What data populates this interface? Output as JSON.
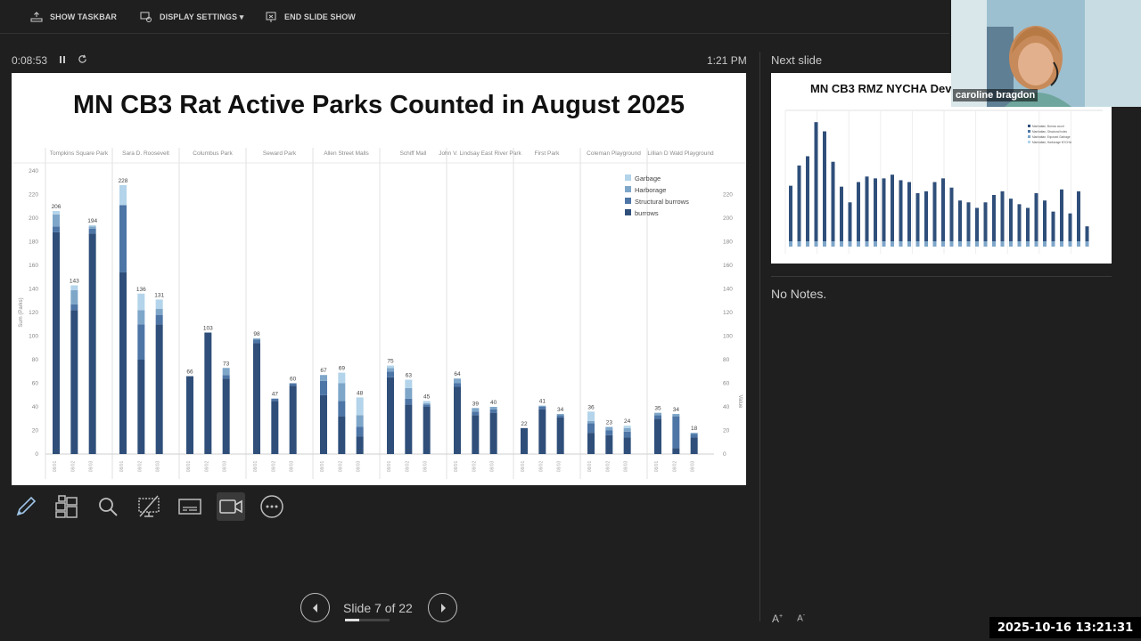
{
  "toolbar": {
    "show_taskbar": "SHOW TASKBAR",
    "display_settings": "DISPLAY SETTINGS ▾",
    "end_slide_show": "END SLIDE SHOW"
  },
  "timer": {
    "elapsed": "0:08:53"
  },
  "clock": "1:21 PM",
  "slide": {
    "title": "MN CB3 Rat Active Parks Counted in August 2025"
  },
  "slide_nav": {
    "label": "Slide 7 of 22",
    "current": 7,
    "total": 22
  },
  "next_slide": {
    "label": "Next slide",
    "title": "MN CB3 RMZ NYCHA Dev"
  },
  "notes": "No Notes.",
  "webcam": {
    "participant": "caroline bragdon"
  },
  "datestamp": "2025-10-16  13:21:31",
  "icons": [
    "taskbar-icon",
    "display-settings-icon",
    "end-show-icon",
    "pause-icon",
    "restart-icon",
    "pen-icon",
    "grid-icon",
    "zoom-icon",
    "pointer-icon",
    "subtitles-icon",
    "camera-icon",
    "more-icon",
    "prev-icon",
    "next-icon"
  ],
  "colors": {
    "burrows": "#2f4f7a",
    "structural": "#4d75a6",
    "harborage": "#7ea6c9",
    "garbage": "#b3d4ea"
  },
  "chart_data": {
    "type": "bar",
    "title": "MN CB3 Rat Active Parks Counted in August 2025",
    "ylabel": "Sum (Parks)",
    "y2label": "Value",
    "ylim": [
      0,
      240
    ],
    "y2lim": [
      0,
      240
    ],
    "grid": false,
    "legend_position": "top-right",
    "parks": [
      "Tompkins Square Park",
      "Sara D. Roosevelt",
      "Columbus Park",
      "Seward Park",
      "Allen Street Malls",
      "Schiff Mall",
      "John V. Lindsay East River Park",
      "First Park",
      "Coleman Playground",
      "Lillian D Wald Playground"
    ],
    "series": [
      {
        "name": "Garbage",
        "color": "#b3d4ea"
      },
      {
        "name": "Harborage",
        "color": "#7ea6c9"
      },
      {
        "name": "Structural burrows",
        "color": "#4d75a6"
      },
      {
        "name": "burrows",
        "color": "#2f4f7a"
      }
    ],
    "bars": [
      {
        "park": 0,
        "total": 206,
        "burrows": 188,
        "structural": 5,
        "harborage": 10,
        "garbage": 3
      },
      {
        "park": 0,
        "total": 143,
        "burrows": 122,
        "structural": 5,
        "harborage": 12,
        "garbage": 4
      },
      {
        "park": 0,
        "total": 194,
        "burrows": 187,
        "structural": 4,
        "harborage": 2,
        "garbage": 1
      },
      {
        "park": 1,
        "total": 228,
        "burrows": 154,
        "structural": 57,
        "harborage": 0,
        "garbage": 17
      },
      {
        "park": 1,
        "total": 136,
        "burrows": 80,
        "structural": 30,
        "harborage": 12,
        "garbage": 14
      },
      {
        "park": 1,
        "total": 131,
        "burrows": 110,
        "structural": 8,
        "harborage": 5,
        "garbage": 8
      },
      {
        "park": 2,
        "total": 66,
        "burrows": 66,
        "structural": 0,
        "harborage": 0,
        "garbage": 0
      },
      {
        "park": 2,
        "total": 103,
        "burrows": 103,
        "structural": 0,
        "harborage": 0,
        "garbage": 0
      },
      {
        "park": 2,
        "total": 73,
        "burrows": 64,
        "structural": 3,
        "harborage": 6,
        "garbage": 0
      },
      {
        "park": 3,
        "total": 98,
        "burrows": 94,
        "structural": 3,
        "harborage": 1,
        "garbage": 0
      },
      {
        "park": 3,
        "total": 47,
        "burrows": 45,
        "structural": 2,
        "harborage": 0,
        "garbage": 0
      },
      {
        "park": 3,
        "total": 60,
        "burrows": 58,
        "structural": 2,
        "harborage": 0,
        "garbage": 0
      },
      {
        "park": 4,
        "total": 67,
        "burrows": 50,
        "structural": 12,
        "harborage": 5,
        "garbage": 0
      },
      {
        "park": 4,
        "total": 69,
        "burrows": 32,
        "structural": 13,
        "harborage": 15,
        "garbage": 9
      },
      {
        "park": 4,
        "total": 48,
        "burrows": 15,
        "structural": 8,
        "harborage": 10,
        "garbage": 15
      },
      {
        "park": 5,
        "total": 75,
        "burrows": 65,
        "structural": 5,
        "harborage": 3,
        "garbage": 2
      },
      {
        "park": 5,
        "total": 63,
        "burrows": 42,
        "structural": 5,
        "harborage": 9,
        "garbage": 7
      },
      {
        "park": 5,
        "total": 45,
        "burrows": 40,
        "structural": 2,
        "harborage": 1,
        "garbage": 2
      },
      {
        "park": 6,
        "total": 64,
        "burrows": 57,
        "structural": 3,
        "harborage": 4,
        "garbage": 0
      },
      {
        "park": 6,
        "total": 39,
        "burrows": 33,
        "structural": 3,
        "harborage": 3,
        "garbage": 0
      },
      {
        "park": 6,
        "total": 40,
        "burrows": 35,
        "structural": 3,
        "harborage": 2,
        "garbage": 0
      },
      {
        "park": 7,
        "total": 22,
        "burrows": 22,
        "structural": 0,
        "harborage": 0,
        "garbage": 0
      },
      {
        "park": 7,
        "total": 41,
        "burrows": 38,
        "structural": 2,
        "harborage": 1,
        "garbage": 0
      },
      {
        "park": 7,
        "total": 34,
        "burrows": 31,
        "structural": 2,
        "harborage": 1,
        "garbage": 0
      },
      {
        "park": 8,
        "total": 36,
        "burrows": 18,
        "structural": 8,
        "harborage": 2,
        "garbage": 8
      },
      {
        "park": 8,
        "total": 23,
        "burrows": 16,
        "structural": 4,
        "harborage": 3,
        "garbage": 0
      },
      {
        "park": 8,
        "total": 24,
        "burrows": 14,
        "structural": 5,
        "harborage": 3,
        "garbage": 2
      },
      {
        "park": 9,
        "total": 35,
        "burrows": 30,
        "structural": 3,
        "harborage": 2,
        "garbage": 0
      },
      {
        "park": 9,
        "total": 34,
        "burrows": 5,
        "structural": 27,
        "harborage": 2,
        "garbage": 0
      },
      {
        "park": 9,
        "total": 18,
        "burrows": 14,
        "structural": 3,
        "harborage": 1,
        "garbage": 0
      }
    ],
    "yticks": [
      0,
      20,
      40,
      60,
      80,
      100,
      120,
      140,
      160,
      180,
      200,
      220,
      240
    ],
    "y2ticks": [
      0,
      20,
      40,
      60,
      80,
      100,
      120,
      140,
      160,
      180,
      200,
      220
    ]
  },
  "thumb_chart": {
    "values": [
      66,
      88,
      98,
      135,
      125,
      92,
      65,
      48,
      70,
      76,
      74,
      74,
      78,
      72,
      70,
      58,
      60,
      70,
      74,
      64,
      50,
      48,
      42,
      48,
      56,
      60,
      52,
      46,
      42,
      58,
      50,
      38,
      62,
      36,
      60,
      22
    ],
    "legend": [
      "Manhattan, Burrow count",
      "Manhattan, Structural holes",
      "Manhattan, Exposed Garbage",
      "Manhattan, Harborage NYCHA"
    ]
  }
}
